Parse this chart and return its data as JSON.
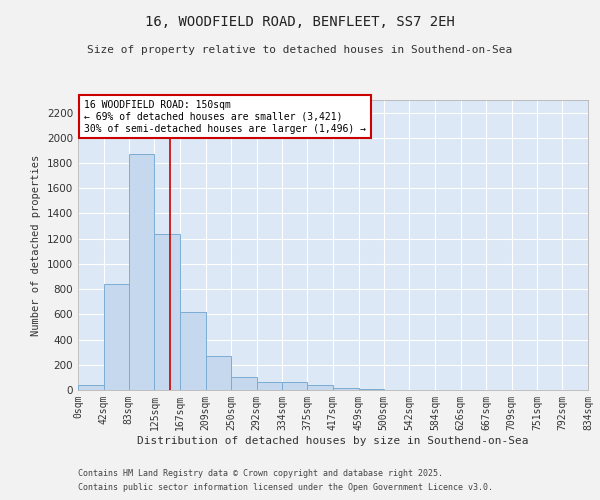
{
  "title1": "16, WOODFIELD ROAD, BENFLEET, SS7 2EH",
  "title2": "Size of property relative to detached houses in Southend-on-Sea",
  "xlabel": "Distribution of detached houses by size in Southend-on-Sea",
  "ylabel": "Number of detached properties",
  "bar_color": "#c5d8ee",
  "bar_edge_color": "#7aadd4",
  "background_color": "#dce8f5",
  "fig_background_color": "#f2f2f2",
  "grid_color": "#ffffff",
  "property_line_x": 150,
  "property_line_color": "#cc0000",
  "annotation_text": "16 WOODFIELD ROAD: 150sqm\n← 69% of detached houses are smaller (3,421)\n30% of semi-detached houses are larger (1,496) →",
  "annotation_box_color": "#ffffff",
  "annotation_box_edge": "#cc0000",
  "bin_edges": [
    0,
    42,
    83,
    125,
    167,
    209,
    250,
    292,
    334,
    375,
    417,
    459,
    500,
    542,
    584,
    626,
    667,
    709,
    751,
    792,
    834
  ],
  "bar_heights": [
    40,
    840,
    1870,
    1240,
    620,
    270,
    100,
    60,
    60,
    40,
    15,
    5,
    0,
    0,
    0,
    0,
    0,
    0,
    0,
    0
  ],
  "ylim": [
    0,
    2300
  ],
  "yticks": [
    0,
    200,
    400,
    600,
    800,
    1000,
    1200,
    1400,
    1600,
    1800,
    2000,
    2200
  ],
  "footnote1": "Contains HM Land Registry data © Crown copyright and database right 2025.",
  "footnote2": "Contains public sector information licensed under the Open Government Licence v3.0."
}
